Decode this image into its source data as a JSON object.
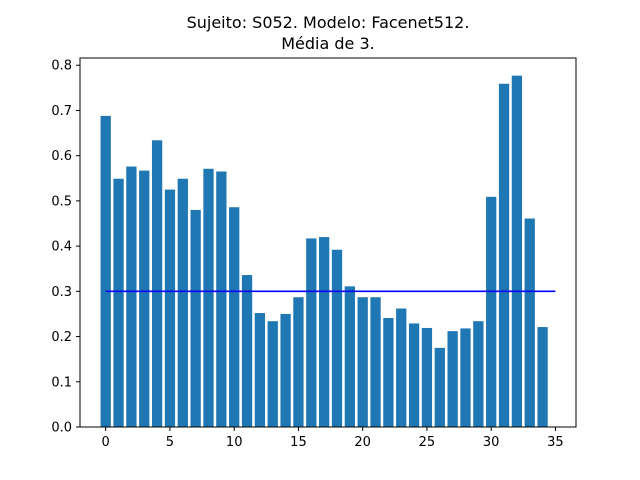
{
  "chart_data": {
    "type": "bar",
    "title": [
      "Sujeito: S052. Modelo: Facenet512.",
      "Média de 3."
    ],
    "xlabel": "",
    "ylabel": "",
    "x": [
      0,
      1,
      2,
      3,
      4,
      5,
      6,
      7,
      8,
      9,
      10,
      11,
      12,
      13,
      14,
      15,
      16,
      17,
      18,
      19,
      20,
      21,
      22,
      23,
      24,
      25,
      26,
      27,
      28,
      29,
      30,
      31,
      32,
      33,
      34
    ],
    "values": [
      0.688,
      0.549,
      0.576,
      0.567,
      0.634,
      0.525,
      0.549,
      0.48,
      0.571,
      0.565,
      0.486,
      0.336,
      0.252,
      0.234,
      0.25,
      0.287,
      0.417,
      0.42,
      0.392,
      0.311,
      0.287,
      0.287,
      0.241,
      0.262,
      0.229,
      0.219,
      0.175,
      0.212,
      0.218,
      0.234,
      0.509,
      0.759,
      0.777,
      0.461,
      0.221
    ],
    "bar_color": "#1f77b4",
    "reference_line": {
      "y": 0.3,
      "x_start": 0,
      "x_end": 35,
      "color": "#0000ff"
    },
    "xlim": [
      -2.0,
      36.6
    ],
    "ylim": [
      0,
      0.816
    ],
    "xticks": [
      0,
      5,
      10,
      15,
      20,
      25,
      30,
      35
    ],
    "xtick_labels": [
      "0",
      "5",
      "10",
      "15",
      "20",
      "25",
      "30",
      "35"
    ],
    "yticks": [
      0.0,
      0.1,
      0.2,
      0.3,
      0.4,
      0.5,
      0.6,
      0.7,
      0.8
    ],
    "ytick_labels": [
      "0.0",
      "0.1",
      "0.2",
      "0.3",
      "0.4",
      "0.5",
      "0.6",
      "0.7",
      "0.8"
    ],
    "grid": false,
    "legend": "none"
  }
}
